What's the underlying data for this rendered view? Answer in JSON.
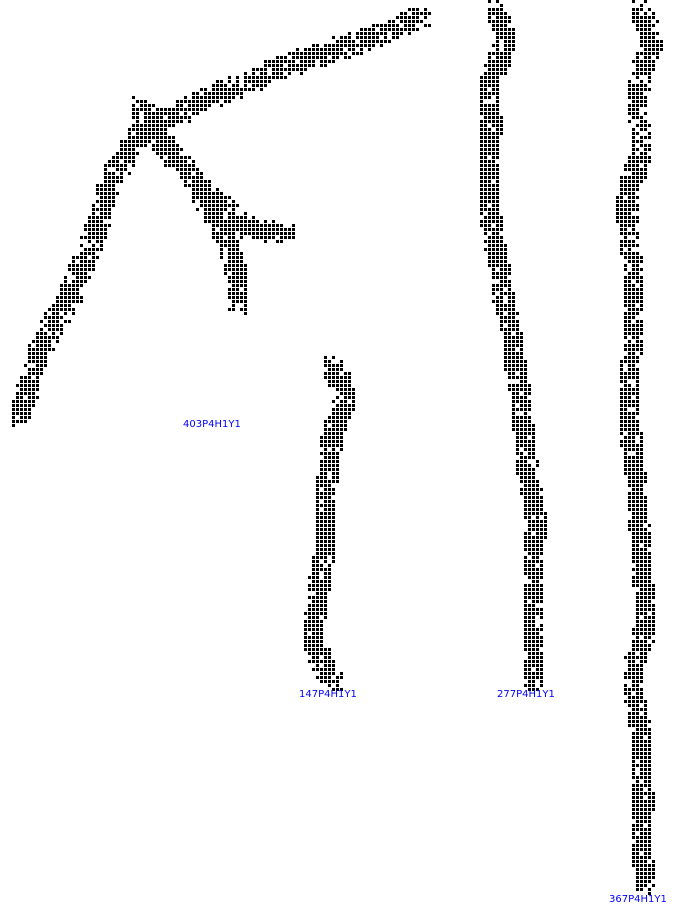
{
  "colors": {
    "background": "#ffffff",
    "cell": "#000000",
    "label": "#0000ff"
  },
  "patterns": [
    {
      "id": "p403",
      "label": "403P4H1Y1"
    },
    {
      "id": "p147",
      "label": "147P4H1Y1"
    },
    {
      "id": "p277",
      "label": "277P4H1Y1"
    },
    {
      "id": "p367",
      "label": "367P4H1Y1"
    }
  ]
}
